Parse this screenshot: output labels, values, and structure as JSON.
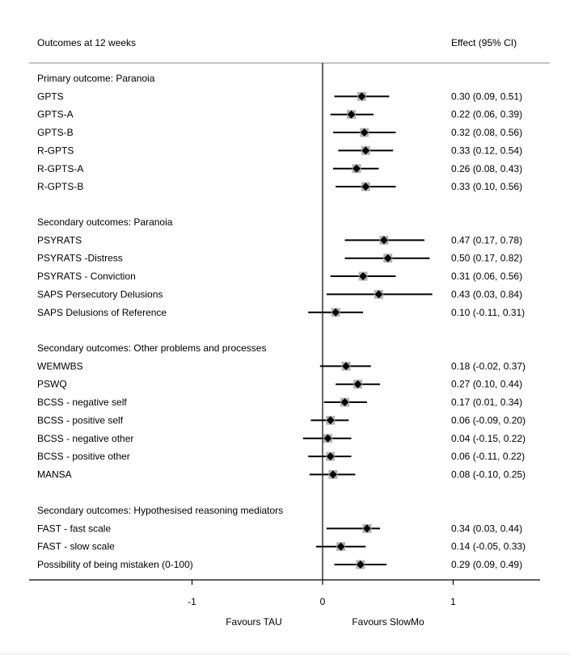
{
  "chart_data": {
    "type": "forest",
    "header_left": "Outcomes at 12 weeks",
    "header_right": "Effect (95% CI)",
    "xlim": [
      -2.2,
      1.7
    ],
    "ticks": [
      {
        "value": -1,
        "label": "-1"
      },
      {
        "value": 0,
        "label": "0"
      },
      {
        "value": 1,
        "label": "1"
      }
    ],
    "favours_left": "Favours TAU",
    "favours_right": "Favours SlowMo",
    "groups": [
      {
        "title": "Primary outcome: Paranoia",
        "rows": [
          {
            "label": "GPTS",
            "estimate": 0.3,
            "lower": 0.09,
            "upper": 0.51,
            "ci_text": "0.30 (0.09, 0.51)"
          },
          {
            "label": "GPTS-A",
            "estimate": 0.22,
            "lower": 0.06,
            "upper": 0.39,
            "ci_text": "0.22 (0.06, 0.39)"
          },
          {
            "label": "GPTS-B",
            "estimate": 0.32,
            "lower": 0.08,
            "upper": 0.56,
            "ci_text": "0.32 (0.08, 0.56)"
          },
          {
            "label": "R-GPTS",
            "estimate": 0.33,
            "lower": 0.12,
            "upper": 0.54,
            "ci_text": "0.33 (0.12, 0.54)"
          },
          {
            "label": "R-GPTS-A",
            "estimate": 0.26,
            "lower": 0.08,
            "upper": 0.43,
            "ci_text": "0.26 (0.08, 0.43)"
          },
          {
            "label": "R-GPTS-B",
            "estimate": 0.33,
            "lower": 0.1,
            "upper": 0.56,
            "ci_text": "0.33 (0.10, 0.56)"
          }
        ]
      },
      {
        "title": "Secondary outcomes: Paranoia",
        "rows": [
          {
            "label": "PSYRATS",
            "estimate": 0.47,
            "lower": 0.17,
            "upper": 0.78,
            "ci_text": "0.47 (0.17, 0.78)"
          },
          {
            "label": "PSYRATS -Distress",
            "estimate": 0.5,
            "lower": 0.17,
            "upper": 0.82,
            "ci_text": "0.50 (0.17, 0.82)"
          },
          {
            "label": "PSYRATS - Conviction",
            "estimate": 0.31,
            "lower": 0.06,
            "upper": 0.56,
            "ci_text": "0.31 (0.06, 0.56)"
          },
          {
            "label": "SAPS Persecutory Delusions",
            "estimate": 0.43,
            "lower": 0.03,
            "upper": 0.84,
            "ci_text": "0.43 (0.03, 0.84)"
          },
          {
            "label": "SAPS Delusions of Reference",
            "estimate": 0.1,
            "lower": -0.11,
            "upper": 0.31,
            "ci_text": "0.10 (-0.11, 0.31)"
          }
        ]
      },
      {
        "title": "Secondary outcomes: Other problems and processes",
        "rows": [
          {
            "label": "WEMWBS",
            "estimate": 0.18,
            "lower": -0.02,
            "upper": 0.37,
            "ci_text": "0.18 (-0.02, 0.37)"
          },
          {
            "label": "PSWQ",
            "estimate": 0.27,
            "lower": 0.1,
            "upper": 0.44,
            "ci_text": "0.27 (0.10, 0.44)"
          },
          {
            "label": "BCSS - negative self",
            "estimate": 0.17,
            "lower": 0.01,
            "upper": 0.34,
            "ci_text": "0.17 (0.01, 0.34)"
          },
          {
            "label": "BCSS - positive self",
            "estimate": 0.06,
            "lower": -0.09,
            "upper": 0.2,
            "ci_text": "0.06 (-0.09, 0.20)"
          },
          {
            "label": "BCSS - negative other",
            "estimate": 0.04,
            "lower": -0.15,
            "upper": 0.22,
            "ci_text": "0.04 (-0.15, 0.22)"
          },
          {
            "label": "BCSS - positive other",
            "estimate": 0.06,
            "lower": -0.11,
            "upper": 0.22,
            "ci_text": "0.06 (-0.11, 0.22)"
          },
          {
            "label": "MANSA",
            "estimate": 0.08,
            "lower": -0.1,
            "upper": 0.25,
            "ci_text": "0.08 (-0.10, 0.25)"
          }
        ]
      },
      {
        "title": "Secondary outcomes: Hypothesised reasoning mediators",
        "rows": [
          {
            "label": "FAST - fast scale",
            "estimate": 0.34,
            "lower": 0.03,
            "upper": 0.44,
            "ci_text": "0.34 (0.03, 0.44)"
          },
          {
            "label": "FAST - slow scale",
            "estimate": 0.14,
            "lower": -0.05,
            "upper": 0.33,
            "ci_text": "0.14 (-0.05, 0.33)"
          },
          {
            "label": "Possibility of being mistaken (0-100)",
            "estimate": 0.29,
            "lower": 0.09,
            "upper": 0.49,
            "ci_text": "0.29 (0.09, 0.49)"
          }
        ]
      }
    ],
    "colors": {
      "marker": "#000000",
      "marker_box": "#b3b3b3",
      "ci_line": "#000000",
      "rule": "#a0a0a0",
      "axis": "#000000"
    }
  }
}
